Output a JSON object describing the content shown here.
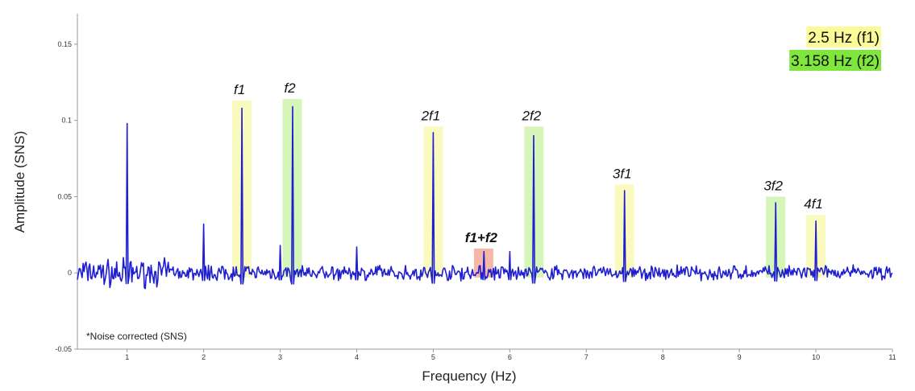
{
  "chart_data": {
    "type": "line",
    "title": "",
    "xlabel": "Frequency (Hz)",
    "ylabel": "Amplitude (SNS)",
    "xlim": [
      0.35,
      11
    ],
    "ylim": [
      -0.05,
      0.17
    ],
    "x_ticks": [
      1,
      2,
      3,
      4,
      5,
      6,
      7,
      8,
      9,
      10,
      11
    ],
    "y_ticks": [
      -0.05,
      0,
      0.05,
      0.1,
      0.15
    ],
    "y_tick_labels": [
      "-0.05",
      "0",
      "0.05",
      "0.1",
      "0.15"
    ],
    "grid": false,
    "line_color": "#1f1fd0",
    "peaks": [
      {
        "x": 1.0,
        "y": 0.098
      },
      {
        "x": 2.0,
        "y": 0.032
      },
      {
        "x": 2.5,
        "y": 0.108
      },
      {
        "x": 3.0,
        "y": 0.018
      },
      {
        "x": 3.158,
        "y": 0.109
      },
      {
        "x": 4.0,
        "y": 0.017
      },
      {
        "x": 5.0,
        "y": 0.092
      },
      {
        "x": 5.658,
        "y": 0.014
      },
      {
        "x": 6.0,
        "y": 0.014
      },
      {
        "x": 6.316,
        "y": 0.09
      },
      {
        "x": 7.5,
        "y": 0.054
      },
      {
        "x": 9.474,
        "y": 0.046
      },
      {
        "x": 10.0,
        "y": 0.034
      }
    ],
    "highlights": [
      {
        "label": "f1",
        "x": 2.5,
        "top": 0.113,
        "color": "#fafabf",
        "bold": false
      },
      {
        "label": "f2",
        "x": 3.158,
        "top": 0.114,
        "color": "#d6f5b8",
        "bold": false
      },
      {
        "label": "2f1",
        "x": 5.0,
        "top": 0.096,
        "color": "#fafabf",
        "bold": false
      },
      {
        "label": "f1+f2",
        "x": 5.658,
        "top": 0.016,
        "color": "#f5b8a8",
        "bold": true
      },
      {
        "label": "2f2",
        "x": 6.316,
        "top": 0.096,
        "color": "#d6f5b8",
        "bold": false
      },
      {
        "label": "3f1",
        "x": 7.5,
        "top": 0.058,
        "color": "#fafabf",
        "bold": false
      },
      {
        "label": "3f2",
        "x": 9.474,
        "top": 0.05,
        "color": "#d6f5b8",
        "bold": false
      },
      {
        "label": "4f1",
        "x": 10.0,
        "top": 0.038,
        "color": "#fafabf",
        "bold": false
      }
    ],
    "legend": {
      "position": "top-right",
      "entries": [
        {
          "text": "2.5 Hz (f1)",
          "color": "#fafa96"
        },
        {
          "text": "3.158 Hz (f2)",
          "color": "#7ee63c"
        }
      ]
    },
    "annotation": "*Noise corrected (SNS)"
  }
}
